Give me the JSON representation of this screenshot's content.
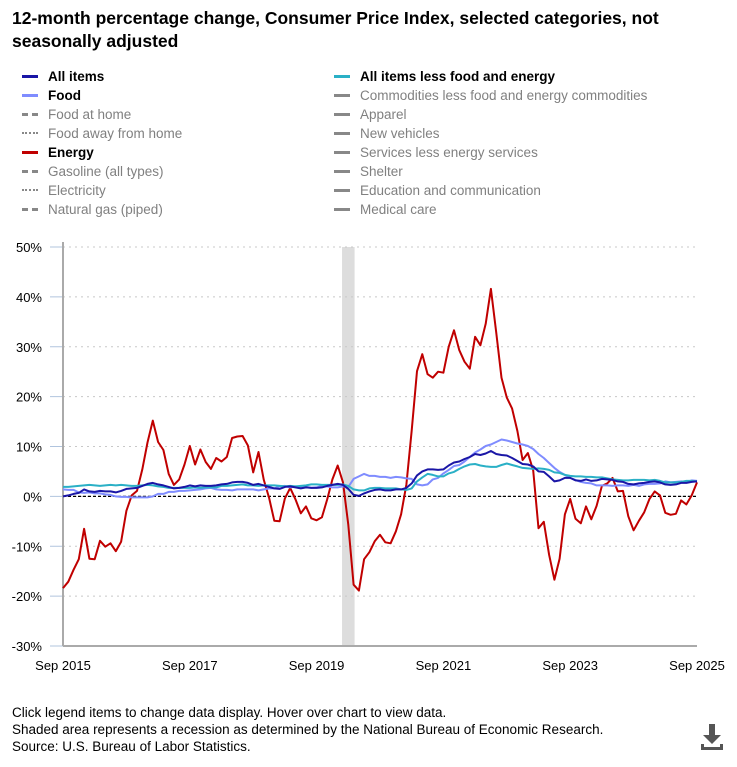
{
  "title": "12-month percentage change, Consumer Price Index, selected categories, not seasonally adjusted",
  "legend": [
    {
      "label": "All items",
      "color": "#1a16a6",
      "style": "solid",
      "active": true
    },
    {
      "label": "Food",
      "color": "#7f8cff",
      "style": "solid",
      "active": true
    },
    {
      "label": "Food at home",
      "color": "#808080",
      "style": "dashed",
      "active": false
    },
    {
      "label": "Food away from home",
      "color": "#808080",
      "style": "dotted",
      "active": false
    },
    {
      "label": "Energy",
      "color": "#c00000",
      "style": "solid",
      "active": true
    },
    {
      "label": "Gasoline (all types)",
      "color": "#808080",
      "style": "dashed",
      "active": false
    },
    {
      "label": "Electricity",
      "color": "#808080",
      "style": "dotted",
      "active": false
    },
    {
      "label": "Natural gas (piped)",
      "color": "#808080",
      "style": "dashdot",
      "active": false
    },
    {
      "label": "All items less food and energy",
      "color": "#2ab0c6",
      "style": "solid",
      "active": true
    },
    {
      "label": "Commodities less food and energy commodities",
      "color": "#808080",
      "style": "solid",
      "active": false
    },
    {
      "label": "Apparel",
      "color": "#808080",
      "style": "solid",
      "active": false
    },
    {
      "label": "New vehicles",
      "color": "#808080",
      "style": "solid",
      "active": false
    },
    {
      "label": "Services less energy services",
      "color": "#808080",
      "style": "solid",
      "active": false
    },
    {
      "label": "Shelter",
      "color": "#808080",
      "style": "solid",
      "active": false
    },
    {
      "label": "Education and communication",
      "color": "#808080",
      "style": "solid",
      "active": false
    },
    {
      "label": "Medical care",
      "color": "#808080",
      "style": "solid",
      "active": false
    }
  ],
  "footnotes": [
    "Click legend items to change data display. Hover over chart to view data.",
    "Shaded area represents a recession as determined by the National Bureau of Economic Research.",
    "Source: U.S. Bureau of Labor Statistics."
  ],
  "download_icon": "download-icon",
  "chart_data": {
    "type": "line",
    "x_start": "Sep 2015",
    "x_end": "Sep 2025",
    "x_frequency": "monthly",
    "x_tick_labels": [
      "Sep 2015",
      "Sep 2017",
      "Sep 2019",
      "Sep 2021",
      "Sep 2023",
      "Sep 2025"
    ],
    "y_tick_labels": [
      "50%",
      "40%",
      "30%",
      "20%",
      "10%",
      "0%",
      "-10%",
      "-20%",
      "-30%"
    ],
    "ylim": [
      -30,
      50
    ],
    "grid": true,
    "recession": {
      "start": "Feb 2020",
      "end": "Apr 2020",
      "color": "#dddddd"
    },
    "series": [
      {
        "name": "Energy",
        "color": "#c00000",
        "values": [
          -18.4,
          -17.1,
          -14.7,
          -12.6,
          -6.5,
          -12.5,
          -12.6,
          -8.9,
          -10.1,
          -9.4,
          -11.0,
          -9.1,
          -2.9,
          0.2,
          1.1,
          5.4,
          10.8,
          15.2,
          10.9,
          9.3,
          4.5,
          2.3,
          3.4,
          6.4,
          10.1,
          6.4,
          9.4,
          6.9,
          5.5,
          7.7,
          7.0,
          7.9,
          11.7,
          12.0,
          12.1,
          10.2,
          4.8,
          8.9,
          3.3,
          -0.3,
          -4.9,
          -5.0,
          -0.4,
          1.7,
          -0.6,
          -3.4,
          -2.0,
          -4.4,
          -4.8,
          -4.2,
          -0.6,
          3.4,
          6.2,
          2.8,
          -5.7,
          -17.7,
          -18.9,
          -12.6,
          -11.2,
          -9.0,
          -7.7,
          -9.2,
          -9.4,
          -7.0,
          -3.6,
          2.4,
          13.2,
          25.1,
          28.5,
          24.5,
          23.8,
          25.0,
          24.8,
          30.0,
          33.3,
          29.3,
          27.0,
          25.6,
          32.0,
          30.3,
          34.6,
          41.6,
          32.9,
          23.8,
          19.8,
          17.6,
          13.1,
          7.3,
          8.7,
          5.2,
          -6.4,
          -5.1,
          -11.7,
          -16.7,
          -12.5,
          -3.6,
          -0.5,
          -4.5,
          -5.4,
          -2.0,
          -4.6,
          -1.9,
          2.1,
          2.6,
          3.7,
          1.0,
          1.1,
          -4.0,
          -6.8,
          -4.9,
          -3.2,
          -0.5,
          1.0,
          0.2,
          -3.3,
          -3.7,
          -3.5,
          -0.8,
          -1.6,
          0.2,
          2.8
        ]
      },
      {
        "name": "Food",
        "color": "#7f8cff",
        "values": [
          1.4,
          1.3,
          1.3,
          0.8,
          0.7,
          0.8,
          0.6,
          0.6,
          0.4,
          0.3,
          0.0,
          -0.1,
          -0.1,
          -0.2,
          -0.2,
          -0.2,
          -0.2,
          0.0,
          0.5,
          0.5,
          0.9,
          0.9,
          1.1,
          1.1,
          1.2,
          1.3,
          1.4,
          1.6,
          1.7,
          1.4,
          1.3,
          1.3,
          1.2,
          1.4,
          1.4,
          1.4,
          1.4,
          1.2,
          1.4,
          1.6,
          1.6,
          2.0,
          2.1,
          1.8,
          2.0,
          1.9,
          1.9,
          1.7,
          1.8,
          2.1,
          2.0,
          1.8,
          1.8,
          2.0,
          1.9,
          3.5,
          4.0,
          4.5,
          4.1,
          4.1,
          3.9,
          3.9,
          3.7,
          3.9,
          3.8,
          3.6,
          3.5,
          2.4,
          2.2,
          2.4,
          3.4,
          3.7,
          4.6,
          5.3,
          6.1,
          6.3,
          7.0,
          7.9,
          8.8,
          9.4,
          10.1,
          10.4,
          10.9,
          11.4,
          11.2,
          10.9,
          10.6,
          10.4,
          10.1,
          9.5,
          8.5,
          7.7,
          6.7,
          5.7,
          4.9,
          4.3,
          3.7,
          3.3,
          2.9,
          2.7,
          2.6,
          2.2,
          2.2,
          2.2,
          2.1,
          2.2,
          2.2,
          2.1,
          2.3,
          2.1,
          2.4,
          2.5,
          2.5,
          2.6,
          3.0,
          2.8,
          2.9,
          3.0,
          2.9,
          3.2,
          3.1
        ]
      },
      {
        "name": "All items less food and energy",
        "color": "#2ab0c6",
        "values": [
          1.9,
          1.9,
          2.0,
          2.1,
          2.2,
          2.3,
          2.2,
          2.1,
          2.2,
          2.3,
          2.2,
          2.3,
          2.2,
          2.1,
          2.1,
          2.2,
          2.3,
          2.2,
          2.0,
          1.9,
          1.7,
          1.7,
          1.7,
          1.7,
          1.7,
          1.8,
          1.7,
          1.8,
          1.8,
          1.8,
          2.1,
          2.1,
          2.2,
          2.3,
          2.4,
          2.2,
          2.2,
          2.1,
          2.2,
          2.2,
          2.2,
          2.1,
          2.0,
          2.1,
          2.0,
          2.1,
          2.2,
          2.4,
          2.4,
          2.3,
          2.3,
          2.3,
          2.3,
          2.4,
          2.1,
          1.4,
          1.2,
          1.2,
          1.6,
          1.7,
          1.7,
          1.6,
          1.6,
          1.6,
          1.4,
          1.3,
          1.6,
          3.0,
          3.8,
          4.5,
          4.3,
          4.0,
          4.0,
          4.6,
          4.9,
          5.5,
          6.0,
          6.4,
          6.5,
          6.2,
          6.0,
          5.9,
          5.9,
          6.3,
          6.6,
          6.3,
          6.0,
          5.7,
          5.6,
          5.5,
          5.6,
          5.5,
          5.3,
          4.8,
          4.7,
          4.3,
          4.1,
          4.0,
          4.0,
          3.9,
          3.9,
          3.8,
          3.8,
          3.6,
          3.4,
          3.3,
          3.2,
          3.2,
          3.3,
          3.3,
          3.3,
          3.2,
          3.3,
          3.1,
          2.8,
          2.8,
          2.8,
          2.9,
          3.1,
          3.1,
          3.0
        ]
      },
      {
        "name": "All items",
        "color": "#1a16a6",
        "values": [
          0.0,
          0.2,
          0.5,
          0.7,
          1.4,
          1.0,
          0.9,
          1.1,
          1.0,
          1.0,
          0.8,
          1.1,
          1.5,
          1.6,
          1.7,
          2.1,
          2.5,
          2.7,
          2.4,
          2.2,
          1.9,
          1.6,
          1.7,
          1.9,
          2.2,
          2.0,
          2.2,
          2.1,
          2.1,
          2.2,
          2.4,
          2.5,
          2.8,
          2.9,
          2.9,
          2.7,
          2.3,
          2.5,
          2.2,
          1.9,
          1.6,
          1.5,
          1.9,
          2.0,
          1.8,
          1.6,
          1.8,
          1.7,
          1.7,
          1.8,
          2.1,
          2.3,
          2.5,
          2.3,
          1.5,
          0.3,
          0.1,
          0.6,
          1.0,
          1.3,
          1.4,
          1.2,
          1.2,
          1.4,
          1.4,
          1.7,
          2.6,
          4.2,
          5.0,
          5.4,
          5.4,
          5.3,
          5.4,
          6.2,
          6.8,
          7.0,
          7.5,
          7.9,
          8.5,
          8.3,
          8.6,
          9.1,
          8.5,
          8.3,
          8.2,
          7.7,
          7.1,
          6.5,
          6.4,
          6.0,
          5.0,
          4.9,
          4.0,
          3.0,
          3.2,
          3.7,
          3.7,
          3.2,
          3.1,
          3.4,
          3.1,
          3.2,
          3.5,
          3.4,
          3.3,
          3.0,
          2.9,
          2.5,
          2.4,
          2.6,
          2.7,
          2.9,
          3.0,
          2.8,
          2.4,
          2.3,
          2.4,
          2.7,
          2.7,
          2.9,
          3.0
        ]
      }
    ]
  }
}
